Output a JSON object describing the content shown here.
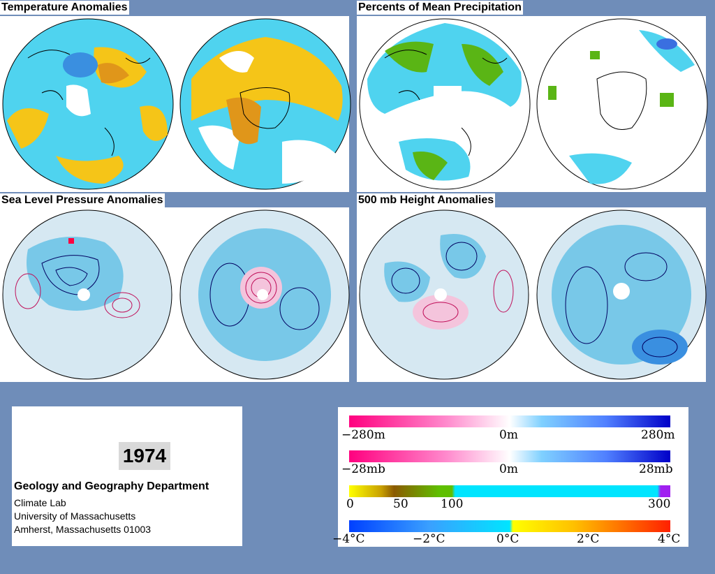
{
  "panels": {
    "temperature": {
      "title": "Temperature Anomalies"
    },
    "precipitation": {
      "title": "Percents of Mean Precipitation"
    },
    "slp": {
      "title": "Sea Level Pressure Anomalies"
    },
    "height": {
      "title": "500 mb Height Anomalies"
    }
  },
  "info": {
    "year": "1974",
    "department": "Geology and Geography Department",
    "lab": "Climate Lab",
    "university": "University of Massachusetts",
    "address": "Amherst, Massachusetts 01003"
  },
  "legend": {
    "height_scale": {
      "min": "−280m",
      "mid": "0m",
      "max": "280m",
      "colors": [
        "#ff007f",
        "#ffffff",
        "#0000c8"
      ]
    },
    "pressure_scale": {
      "min": "−28mb",
      "mid": "0m",
      "max": "28mb",
      "colors": [
        "#ff007f",
        "#ffffff",
        "#0000c8"
      ]
    },
    "precip_scale": {
      "t0": "0",
      "t50": "50",
      "t100": "100",
      "t300": "300",
      "colors": [
        "#ffff00",
        "#8b5a00",
        "#5fbf00",
        "#00e5ff",
        "#a020f0"
      ]
    },
    "temp_scale": {
      "min": "−4°C",
      "m2": "−2°C",
      "mid": "0°C",
      "p2": "2°C",
      "max": "4°C",
      "colors": [
        "#0040ff",
        "#00e5ff",
        "#ffff00",
        "#ff2000"
      ]
    }
  }
}
